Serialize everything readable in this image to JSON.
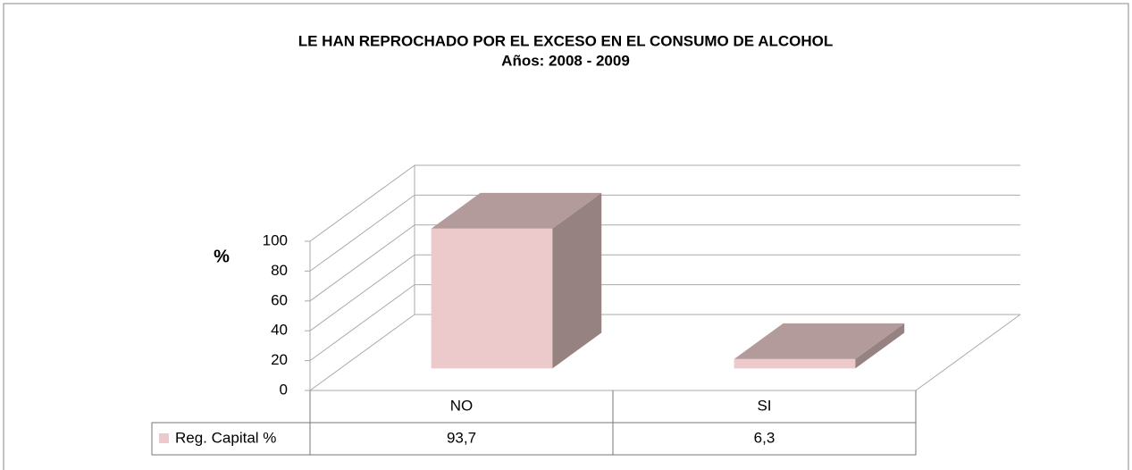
{
  "chart_data": {
    "type": "bar3d",
    "title": "LE HAN REPROCHADO  POR EL EXCESO EN EL CONSUMO DE ALCOHOL",
    "subtitle": "Años: 2008 - 2009",
    "y_label": "%",
    "categories": [
      "NO",
      "SI"
    ],
    "series": [
      {
        "name": "Reg. Capital  %",
        "color": "#ecc9cb",
        "top_color": "#b39b9c",
        "side_color": "#958281",
        "values": [
          93.7,
          6.3
        ],
        "value_labels": [
          "93,7",
          "6,3"
        ]
      }
    ],
    "ylim": [
      0,
      100
    ],
    "yticks": [
      0,
      20,
      40,
      60,
      80,
      100
    ],
    "grid": true
  }
}
